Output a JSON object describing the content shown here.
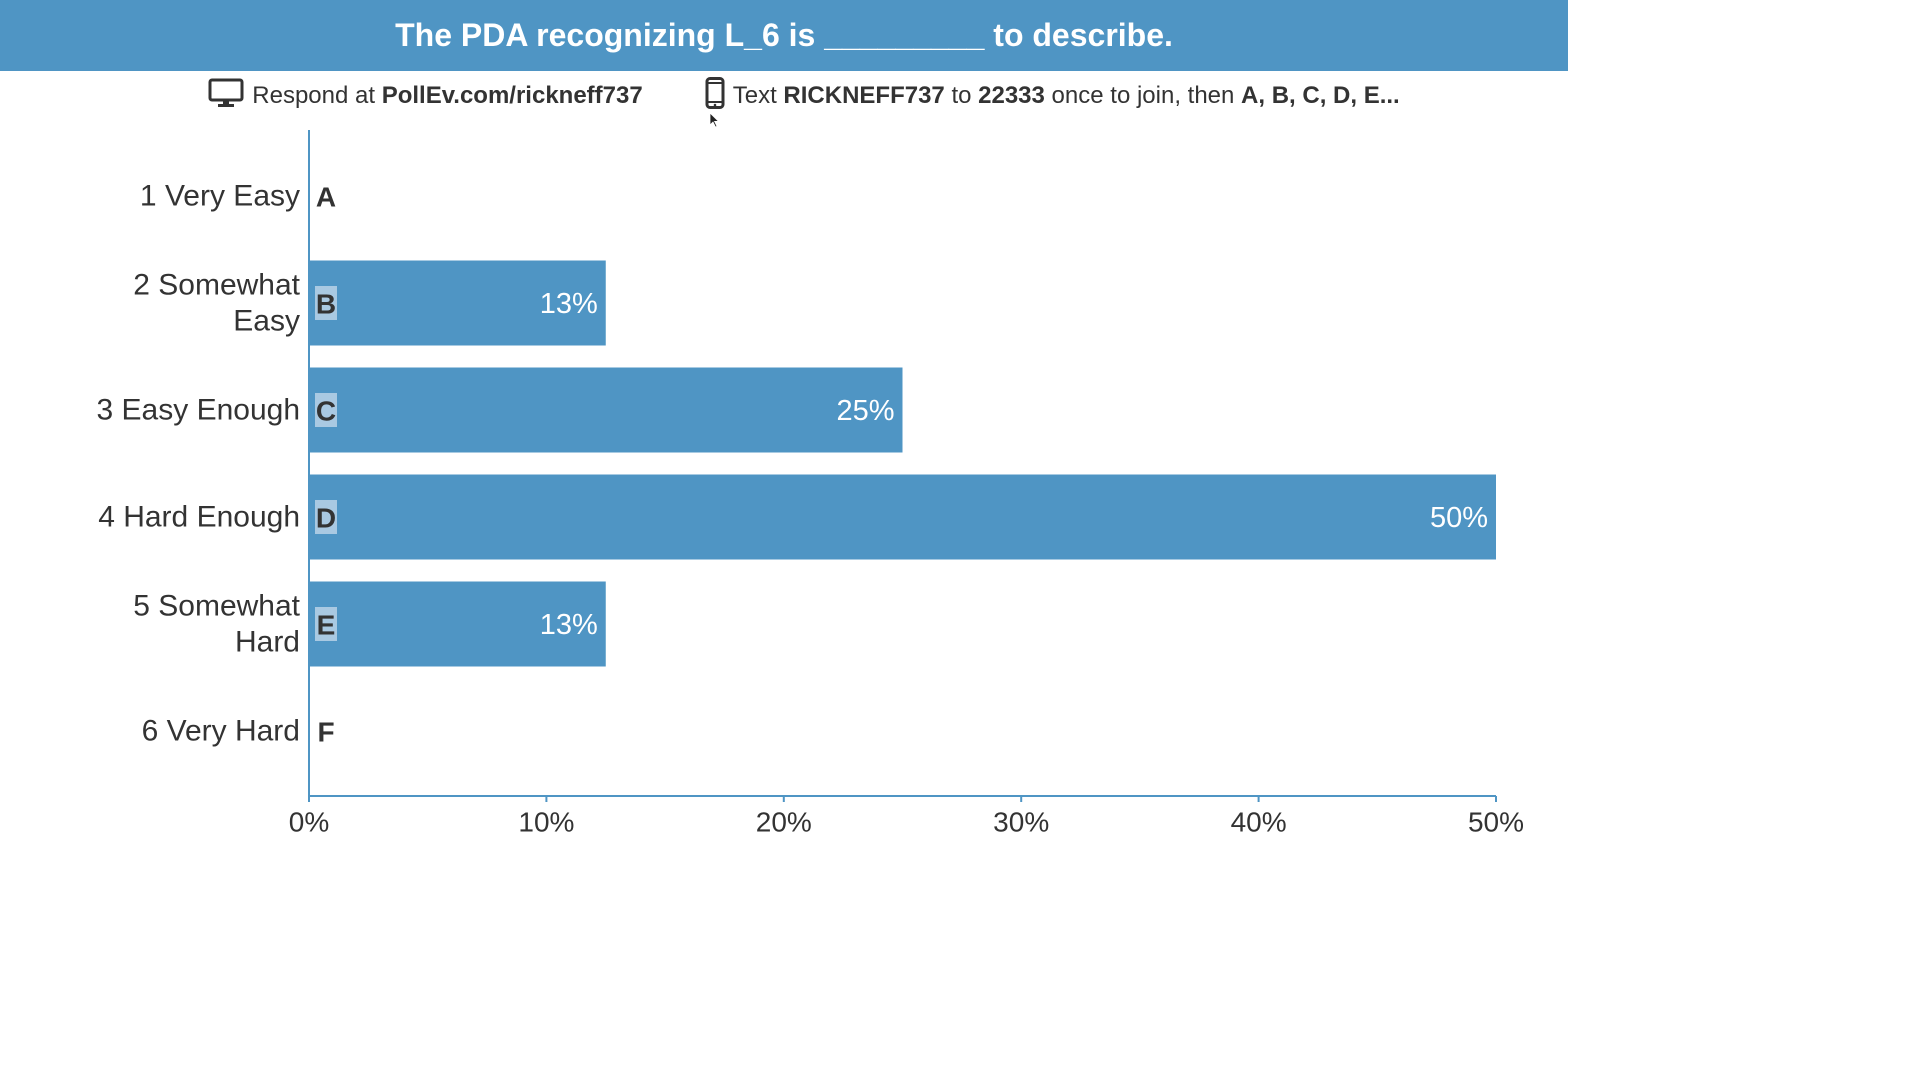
{
  "title": "The PDA recognizing L_6 is _________ to describe.",
  "instructions": {
    "respond_prefix": "Respond at ",
    "url": "PollEv.com/rickneff737",
    "text_prefix": "Text ",
    "keyword": "RICKNEFF737",
    "to": " to ",
    "number": "22333",
    "join_text": " once to join, then ",
    "options": "A, B, C, D, E...",
    "desktop_icon": "desktop-monitor-icon",
    "phone_icon": "mobile-phone-icon"
  },
  "colors": {
    "accent": "#4f95c4",
    "letter_badge": "#a9c9e2",
    "text": "#333333",
    "axis": "#4f95c4"
  },
  "chart_data": {
    "type": "bar",
    "orientation": "horizontal",
    "categories": [
      [
        "1 Very Easy"
      ],
      [
        "2 Somewhat",
        "Easy"
      ],
      [
        "3 Easy Enough"
      ],
      [
        "4 Hard Enough"
      ],
      [
        "5 Somewhat",
        "Hard"
      ],
      [
        "6 Very Hard"
      ]
    ],
    "letters": [
      "A",
      "B",
      "C",
      "D",
      "E",
      "F"
    ],
    "values": [
      0,
      12.5,
      25,
      50,
      12.5,
      0
    ],
    "value_labels": [
      "",
      "13%",
      "25%",
      "50%",
      "13%",
      ""
    ],
    "xlim": [
      0,
      50
    ],
    "xticks": [
      "0%",
      "10%",
      "20%",
      "30%",
      "40%",
      "50%"
    ],
    "grid": false
  }
}
